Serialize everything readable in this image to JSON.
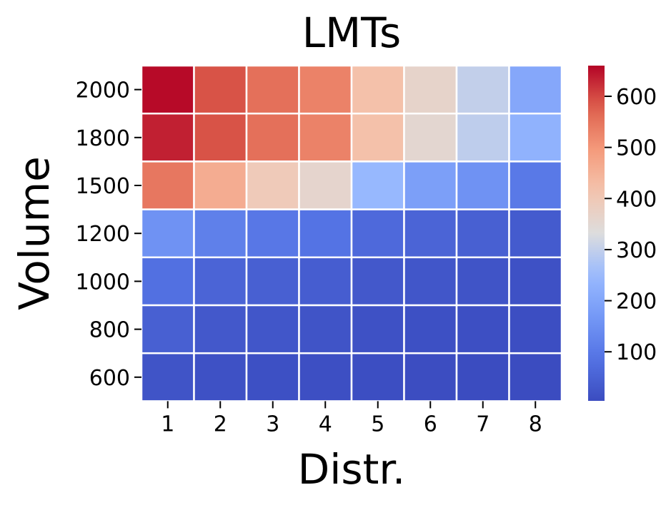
{
  "chart_data": {
    "type": "heatmap",
    "title": "LMTs",
    "xlabel": "Distr.",
    "ylabel": "Volume",
    "x_categories": [
      "1",
      "2",
      "3",
      "4",
      "5",
      "6",
      "7",
      "8"
    ],
    "y_categories": [
      "2000",
      "1800",
      "1500",
      "1200",
      "1000",
      "800",
      "600"
    ],
    "values": [
      [
        655,
        590,
        555,
        530,
        420,
        365,
        300,
        205
      ],
      [
        635,
        590,
        555,
        530,
        420,
        355,
        295,
        230
      ],
      [
        545,
        460,
        395,
        360,
        245,
        185,
        155,
        100
      ],
      [
        155,
        115,
        95,
        85,
        65,
        55,
        45,
        35
      ],
      [
        80,
        55,
        45,
        40,
        30,
        25,
        20,
        15
      ],
      [
        45,
        30,
        25,
        20,
        15,
        12,
        10,
        8
      ],
      [
        20,
        15,
        12,
        10,
        8,
        7,
        5,
        4
      ]
    ],
    "colorbar": {
      "ticks": [
        "100",
        "200",
        "300",
        "400",
        "500",
        "600"
      ],
      "vmin": 4,
      "vmax": 660,
      "colormap": "coolwarm"
    },
    "grid": true
  }
}
